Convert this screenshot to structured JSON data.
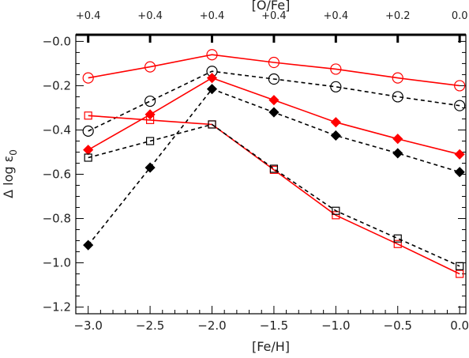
{
  "chart_data": {
    "type": "line",
    "xlabel": "[Fe/H]",
    "ylabel": "Δ log ε",
    "ylabel_subscript": "0",
    "top_axis_label": "[O/Fe]",
    "top_tick_labels": [
      "+0.4",
      "+0.4",
      "+0.4",
      "+0.4",
      "+0.4",
      "+0.2",
      "0.0"
    ],
    "x": [
      -3.0,
      -2.5,
      -2.0,
      -1.5,
      -1.0,
      -0.5,
      0.0
    ],
    "x_tick_labels": [
      "−3.0",
      "−2.5",
      "−2.0",
      "−1.5",
      "−1.0",
      "−0.5",
      "0.0"
    ],
    "y_tick_values": [
      0.0,
      -0.2,
      -0.4,
      -0.6,
      -0.8,
      -1.0,
      -1.2
    ],
    "y_tick_labels": [
      "−0.0",
      "−0.2",
      "−0.4",
      "−0.6",
      "−0.8",
      "−1.0",
      "−1.2"
    ],
    "xlim": [
      -3.1,
      0.05
    ],
    "ylim": [
      -1.23,
      0.03
    ],
    "grid": false,
    "series": [
      {
        "marker": "open-circle",
        "color": "#ff0000",
        "style": "solid",
        "values": [
          -0.165,
          -0.115,
          -0.06,
          -0.095,
          -0.125,
          -0.165,
          -0.2
        ]
      },
      {
        "marker": "open-circle",
        "color": "#000000",
        "style": "dashed",
        "values": [
          -0.405,
          -0.27,
          -0.135,
          -0.17,
          -0.205,
          -0.25,
          -0.29
        ]
      },
      {
        "marker": "filled-diamond",
        "color": "#ff0000",
        "style": "solid",
        "values": [
          -0.49,
          -0.33,
          -0.165,
          -0.265,
          -0.365,
          -0.44,
          -0.51
        ]
      },
      {
        "marker": "filled-diamond",
        "color": "#000000",
        "style": "dashed",
        "values": [
          -0.92,
          -0.57,
          -0.215,
          -0.32,
          -0.425,
          -0.505,
          -0.59
        ]
      },
      {
        "marker": "open-square",
        "color": "#ff0000",
        "style": "solid",
        "values": [
          -0.335,
          -0.355,
          -0.375,
          -0.58,
          -0.785,
          -0.915,
          -1.05
        ]
      },
      {
        "marker": "open-square",
        "color": "#000000",
        "style": "dashed",
        "values": [
          -0.525,
          -0.45,
          -0.375,
          -0.575,
          -0.765,
          -0.89,
          -1.015
        ]
      }
    ]
  }
}
